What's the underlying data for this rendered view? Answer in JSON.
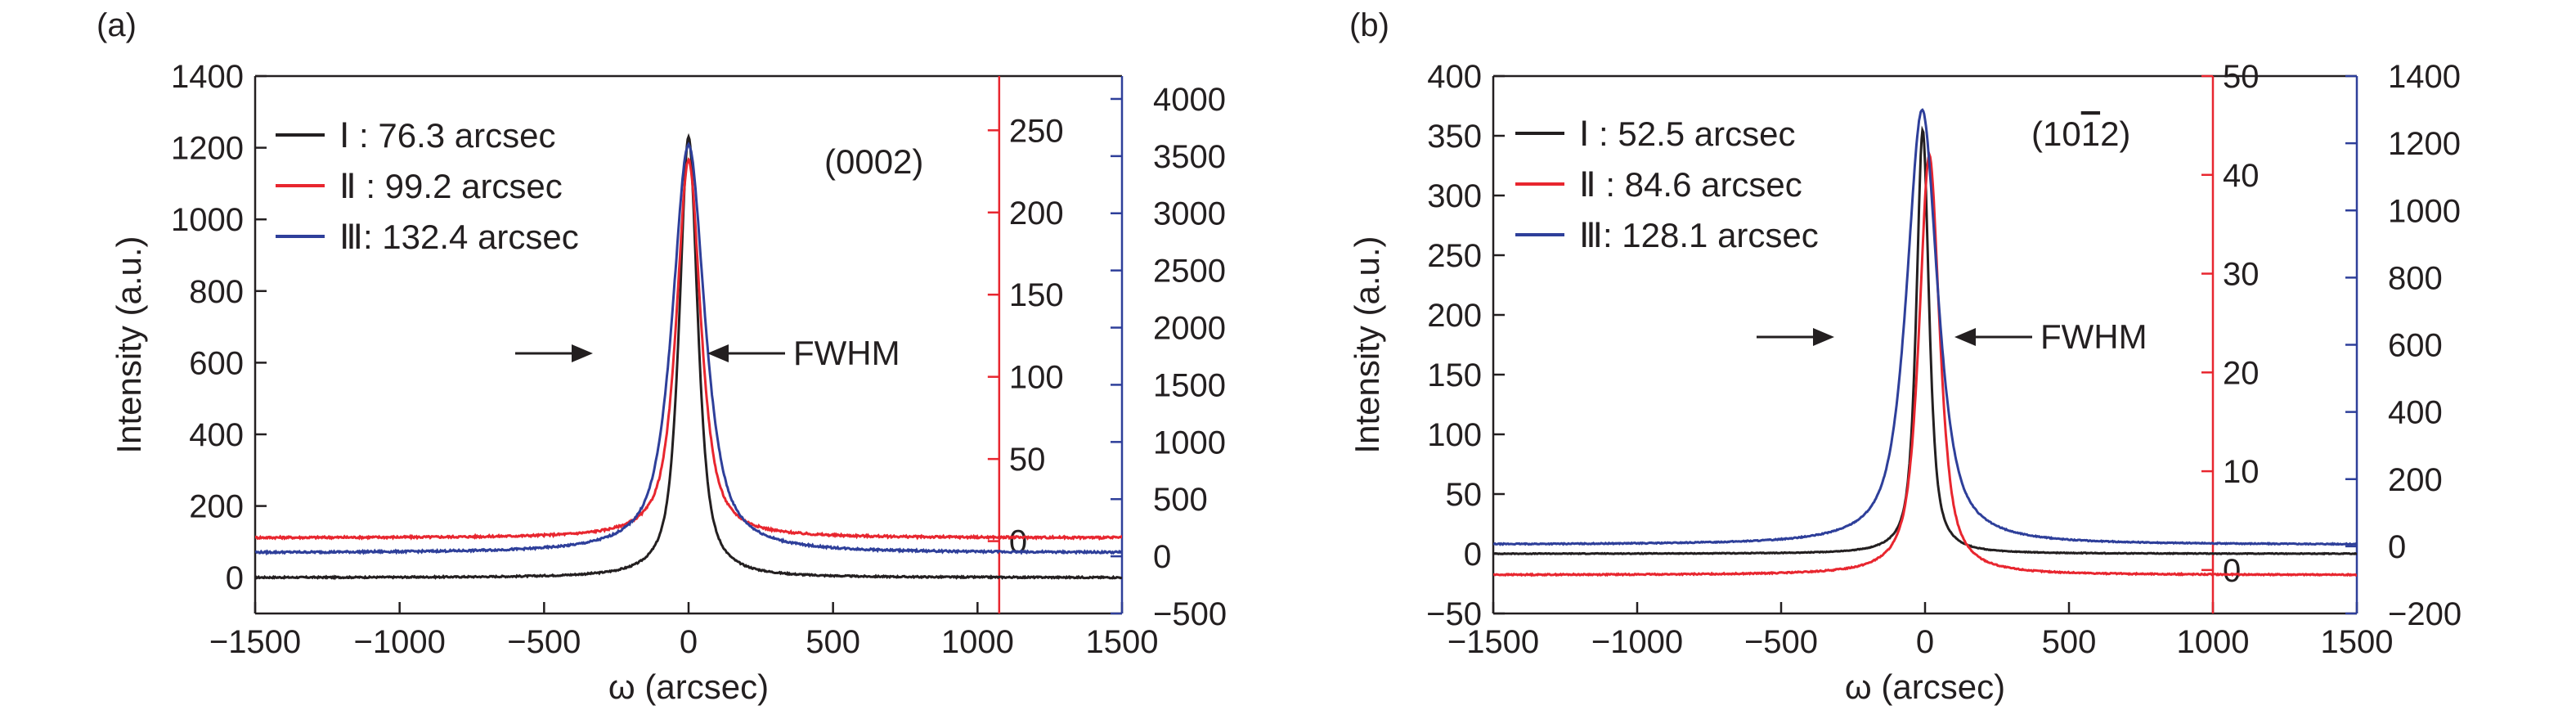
{
  "figure": {
    "panels": [
      {
        "panel_label": "(a)",
        "reflection": "(0002)",
        "xlabel": "ω (arcsec)",
        "ylabel": "Intensity (a.u.)",
        "fwhm_label": "FWHM",
        "xlim": [
          -1500,
          1500
        ],
        "xticks": [
          -1500,
          -1000,
          -500,
          0,
          500,
          1000,
          1500
        ],
        "axes": {
          "left": {
            "color": "#231f20",
            "ylim": [
              -100,
              1400
            ],
            "ticks": [
              0,
              200,
              400,
              600,
              800,
              1000,
              1200,
              1400
            ]
          },
          "red": {
            "color": "#e8262f",
            "x_position": 1075,
            "ylim": [
              -44,
              283
            ],
            "ticks": [
              0,
              50,
              100,
              150,
              200,
              250
            ]
          },
          "blue": {
            "color": "#2e3f9a",
            "ylim": [
              -500,
              4200
            ],
            "ticks": [
              -500,
              0,
              500,
              1000,
              1500,
              2000,
              2500,
              3000,
              3500,
              4000
            ]
          }
        }
      },
      {
        "panel_label": "(b)",
        "reflection": "(10",
        "reflection_bar": "1",
        "reflection_end": "2)",
        "xlabel": "ω (arcsec)",
        "ylabel": "Intensity (a.u.)",
        "fwhm_label": "FWHM",
        "xlim": [
          -1500,
          1500
        ],
        "xticks": [
          -1500,
          -1000,
          -500,
          0,
          500,
          1000,
          1500
        ],
        "axes": {
          "left": {
            "color": "#231f20",
            "ylim": [
              -50,
              400
            ],
            "ticks": [
              -50,
              0,
              50,
              100,
              150,
              200,
              250,
              300,
              350,
              400
            ]
          },
          "red": {
            "color": "#e8262f",
            "x_position": 1000,
            "ylim": [
              -4.4,
              50
            ],
            "ticks": [
              0,
              10,
              20,
              30,
              40,
              50
            ]
          },
          "blue": {
            "color": "#2e3f9a",
            "ylim": [
              -200,
              1400
            ],
            "ticks": [
              -200,
              0,
              200,
              400,
              600,
              800,
              1000,
              1200,
              1400
            ]
          }
        }
      }
    ]
  },
  "chart_data": [
    {
      "type": "line",
      "title": "(0002)",
      "xlabel": "ω (arcsec)",
      "ylabel": "Intensity (a.u.)",
      "xlim": [
        -1500,
        1500
      ],
      "ylim": [
        -100,
        1400
      ],
      "grid": false,
      "legend_position": "top-left",
      "series": [
        {
          "name": "Ⅰ : 76.3 arcsec",
          "color": "#231f20",
          "axis": "left",
          "fwhm": 76.3,
          "peak": 1230,
          "baseline": 0,
          "noise": 2
        },
        {
          "name": "Ⅱ : 99.2 arcsec",
          "color": "#e8262f",
          "axis": "red",
          "fwhm": 99.2,
          "peak": 232,
          "baseline": 2,
          "noise": 0.6
        },
        {
          "name": "Ⅲ: 132.4 arcsec",
          "color": "#2e3f9a",
          "axis": "blue",
          "fwhm": 132.4,
          "peak": 3600,
          "baseline": 30,
          "noise": 8
        }
      ]
    },
    {
      "type": "line",
      "title": "(101̄2)",
      "xlabel": "ω (arcsec)",
      "ylabel": "Intensity (a.u.)",
      "xlim": [
        -1500,
        1500
      ],
      "ylim": [
        -50,
        400
      ],
      "grid": false,
      "legend_position": "top-left",
      "series": [
        {
          "name": "Ⅰ : 52.5 arcsec",
          "color": "#231f20",
          "axis": "left",
          "fwhm": 52.5,
          "peak": 355,
          "baseline": 0,
          "noise": 0.3,
          "offset": -8
        },
        {
          "name": "Ⅱ : 84.6 arcsec",
          "color": "#e8262f",
          "axis": "red",
          "fwhm": 84.6,
          "peak": 42,
          "baseline": -0.5,
          "noise": 0.06,
          "offset": 15
        },
        {
          "name": "Ⅲ: 128.1 arcsec",
          "color": "#2e3f9a",
          "axis": "blue",
          "fwhm": 128.1,
          "peak": 1300,
          "baseline": 5,
          "noise": 1.5,
          "offset": -10
        }
      ]
    }
  ]
}
